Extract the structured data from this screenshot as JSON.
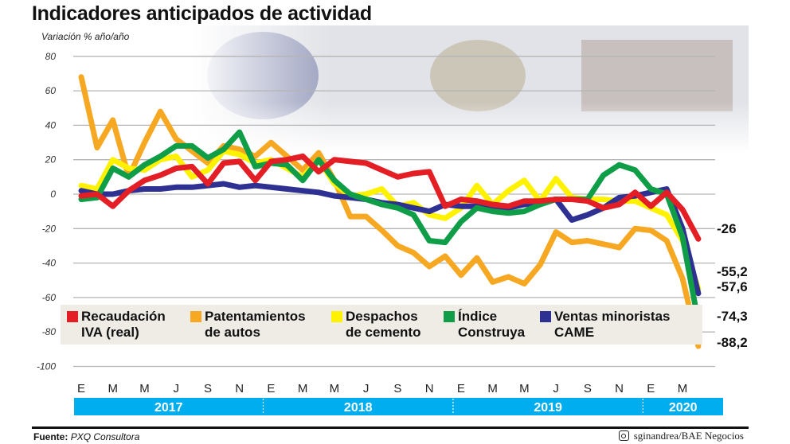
{
  "title": "Indicadores anticipados de actividad",
  "chart_data": {
    "type": "line",
    "title": "Indicadores anticipados de actividad",
    "ylabel": "Variación % año/año",
    "ylim": [
      -100,
      80
    ],
    "yticks": [
      80,
      60,
      40,
      20,
      0,
      -20,
      -40,
      -60,
      -80,
      -100
    ],
    "ytick_labels": [
      "80",
      "60",
      "40",
      "20",
      "0",
      "-20",
      "-40",
      "-60",
      "-80",
      "-100"
    ],
    "grid": true,
    "legend_placement": "bottom",
    "x_start": "2017-01",
    "x_end": "2020-04",
    "month_tick_labels": [
      "E",
      "M",
      "M",
      "J",
      "S",
      "N",
      "E",
      "M",
      "M",
      "J",
      "S",
      "N",
      "E",
      "M",
      "M",
      "J",
      "S",
      "N",
      "E",
      "M"
    ],
    "years": [
      "2017",
      "2018",
      "2019",
      "2020"
    ],
    "series": [
      {
        "name": "Recaudación IVA (real)",
        "color": "#e31e24",
        "end_label": "-26",
        "values": [
          -1,
          0,
          -7,
          2,
          8,
          11,
          15,
          16,
          6,
          18,
          19,
          8,
          19,
          20,
          22,
          13,
          20,
          19,
          18,
          14,
          10,
          12,
          13,
          -7,
          -3,
          -4,
          -6,
          -7,
          -4,
          -4,
          -3,
          -3,
          -4,
          -8,
          -6,
          1,
          -7,
          1,
          -9,
          -26
        ]
      },
      {
        "name": "Patentamientos de autos",
        "color": "#f7a823",
        "end_label": "-88,2",
        "values": [
          68,
          27,
          43,
          10,
          30,
          48,
          32,
          25,
          18,
          28,
          26,
          22,
          30,
          22,
          14,
          24,
          8,
          -13,
          -13,
          -21,
          -30,
          -34,
          -42,
          -36,
          -47,
          -37,
          -51,
          -48,
          -52,
          -41,
          -22,
          -28,
          -27,
          -29,
          -31,
          -20,
          -21,
          -27,
          -49,
          -88.2
        ]
      },
      {
        "name": "Despachos de cemento",
        "color": "#fff200",
        "end_label": "-55,2",
        "values": [
          5,
          3,
          20,
          15,
          14,
          20,
          22,
          10,
          14,
          25,
          23,
          18,
          20,
          15,
          10,
          20,
          6,
          -1,
          0,
          3,
          -7,
          -5,
          -12,
          -14,
          -8,
          5,
          -6,
          2,
          8,
          -4,
          9,
          -2,
          -3,
          -3,
          -4,
          -4,
          -8,
          -12,
          -27,
          -55.2
        ]
      },
      {
        "name": "Índice Construya",
        "color": "#0f9d48",
        "end_label": "-74,3",
        "values": [
          -3,
          -2,
          15,
          10,
          17,
          22,
          28,
          28,
          21,
          26,
          36,
          16,
          18,
          17,
          8,
          20,
          8,
          0,
          -3,
          -6,
          -8,
          -12,
          -27,
          -28,
          -16,
          -8,
          -10,
          -11,
          -10,
          -6,
          -3,
          -3,
          -3,
          11,
          17,
          14,
          3,
          0,
          -25,
          -74.3
        ]
      },
      {
        "name": "Ventas minoristas CAME",
        "color": "#2e3192",
        "end_label": "-57,6",
        "values": [
          2,
          0,
          0,
          2,
          3,
          3,
          4,
          4,
          5,
          6,
          4,
          5,
          4,
          3,
          2,
          1,
          -1,
          -2,
          -3,
          -5,
          -6,
          -8,
          -10,
          -6,
          -7,
          -7,
          -8,
          -8,
          -6,
          -5,
          -3,
          -15,
          -12,
          -8,
          -2,
          -1,
          1,
          3,
          -20,
          -57.6
        ]
      }
    ]
  },
  "legend": [
    {
      "line1": "Recaudación",
      "line2": "IVA (real)"
    },
    {
      "line1": "Patentamientos",
      "line2": "de autos"
    },
    {
      "line1": "Despachos",
      "line2": "de cemento"
    },
    {
      "line1": "Índice",
      "line2": "Construya"
    },
    {
      "line1": "Ventas minoristas",
      "line2": "CAME"
    }
  ],
  "footer": {
    "source_label": "Fuente:",
    "source": "PXQ Consultora",
    "credit": "sginandrea/BAE Negocios"
  },
  "colors": {
    "year_bar": "#00aeef",
    "grid": "#b4b4b4"
  }
}
